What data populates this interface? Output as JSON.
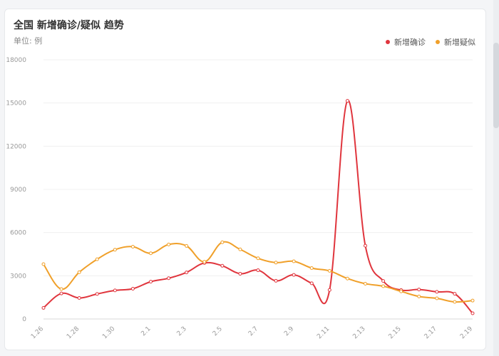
{
  "header": {
    "title": "全国 新增确诊/疑似 趋势",
    "unit": "单位: 例"
  },
  "chart_data": {
    "type": "line",
    "title": "全国 新增确诊/疑似 趋势",
    "ylabel": "单位: 例",
    "ylim": [
      0,
      18000
    ],
    "yticks": [
      0,
      3000,
      6000,
      9000,
      12000,
      15000,
      18000
    ],
    "categories": [
      "1.26",
      "1.27",
      "1.28",
      "1.29",
      "1.30",
      "1.31",
      "2.1",
      "2.2",
      "2.3",
      "2.4",
      "2.5",
      "2.6",
      "2.7",
      "2.8",
      "2.9",
      "2.10",
      "2.11",
      "2.12",
      "2.13",
      "2.14",
      "2.15",
      "2.16",
      "2.17",
      "2.18",
      "2.19"
    ],
    "xtick_labels": [
      "1.26",
      "1.28",
      "1.30",
      "2.1",
      "2.3",
      "2.5",
      "2.7",
      "2.9",
      "2.11",
      "2.13",
      "2.15",
      "2.17",
      "2.19"
    ],
    "legend_position": "top-right",
    "grid": true,
    "series": [
      {
        "name": "新增确诊",
        "color": "#e0353d",
        "values": [
          770,
          1771,
          1459,
          1737,
          1982,
          2102,
          2590,
          2829,
          3235,
          3887,
          3694,
          3143,
          3385,
          2652,
          3062,
          2478,
          2015,
          15152,
          5090,
          2641,
          2009,
          2048,
          1886,
          1749,
          394
        ]
      },
      {
        "name": "新增疑似",
        "color": "#f0a02a",
        "values": [
          3806,
          2077,
          3248,
          4148,
          4812,
          5019,
          4562,
          5173,
          5072,
          3971,
          5328,
          4833,
          4214,
          3916,
          4008,
          3536,
          3342,
          2807,
          2450,
          2277,
          1918,
          1563,
          1432,
          1185,
          1277
        ]
      }
    ]
  }
}
